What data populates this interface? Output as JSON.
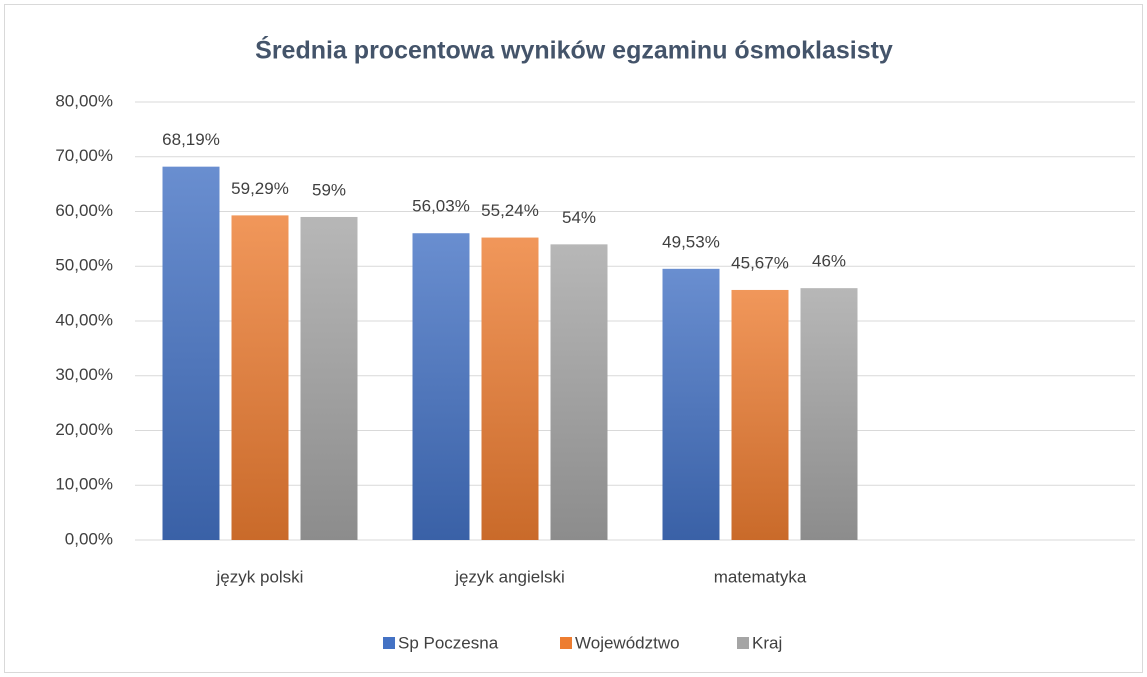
{
  "chart_data": {
    "type": "bar",
    "title": "Średnia procentowa wyników egzaminu ósmoklasisty",
    "categories": [
      "język polski",
      "język angielski",
      "matematyka",
      null
    ],
    "series": [
      {
        "name": "Sp Poczesna",
        "color": "#4472c4",
        "values": [
          68.19,
          56.03,
          49.53,
          null
        ],
        "value_labels": [
          "68,19%",
          "56,03%",
          "49,53%",
          null
        ]
      },
      {
        "name": "Województwo",
        "color": "#ed7d31",
        "values": [
          59.29,
          55.24,
          45.67,
          null
        ],
        "value_labels": [
          "59,29%",
          "55,24%",
          "45,67%",
          null
        ]
      },
      {
        "name": "Kraj",
        "color": "#a5a5a5",
        "values": [
          59,
          54,
          46,
          null
        ],
        "value_labels": [
          "59%",
          "54%",
          "46%",
          null
        ]
      }
    ],
    "ylim": [
      0,
      80
    ],
    "yticks": [
      {
        "value": 0,
        "label": "0,00%"
      },
      {
        "value": 10,
        "label": "10,00%"
      },
      {
        "value": 20,
        "label": "20,00%"
      },
      {
        "value": 30,
        "label": "30,00%"
      },
      {
        "value": 40,
        "label": "40,00%"
      },
      {
        "value": 50,
        "label": "50,00%"
      },
      {
        "value": 60,
        "label": "60,00%"
      },
      {
        "value": 70,
        "label": "70,00%"
      },
      {
        "value": 80,
        "label": "80,00%"
      }
    ],
    "grid": true,
    "legend": "bottom"
  }
}
